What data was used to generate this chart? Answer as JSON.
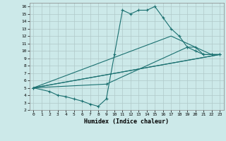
{
  "xlabel": "Humidex (Indice chaleur)",
  "bg_color": "#cce9e9",
  "line_color": "#1a7070",
  "grid_color": "#b0c8c8",
  "xlim": [
    -0.5,
    23.5
  ],
  "ylim": [
    2,
    16.5
  ],
  "xticks": [
    0,
    1,
    2,
    3,
    4,
    5,
    6,
    7,
    8,
    9,
    10,
    11,
    12,
    13,
    14,
    15,
    16,
    17,
    18,
    19,
    20,
    21,
    22,
    23
  ],
  "yticks": [
    2,
    3,
    4,
    5,
    6,
    7,
    8,
    9,
    10,
    11,
    12,
    13,
    14,
    15,
    16
  ],
  "series0_x": [
    0,
    2,
    3,
    4,
    5,
    6,
    7,
    8,
    9,
    10,
    11,
    12,
    13,
    14,
    15,
    16,
    17,
    18,
    19,
    20,
    21,
    22,
    23
  ],
  "series0_y": [
    5,
    4.5,
    4,
    3.8,
    3.5,
    3.2,
    2.8,
    2.5,
    3.5,
    9.5,
    15.5,
    15,
    15.5,
    15.5,
    16,
    14.5,
    13,
    12,
    10.5,
    10,
    9.5,
    9.5,
    9.5
  ],
  "series1_x": [
    0,
    23
  ],
  "series1_y": [
    5,
    9.5
  ],
  "series2_x": [
    0,
    9,
    19,
    20,
    21,
    22,
    23
  ],
  "series2_y": [
    5,
    5.5,
    10.5,
    10.5,
    9.5,
    9.5,
    9.5
  ],
  "series3_x": [
    0,
    23
  ],
  "series3_y": [
    5,
    9.5
  ],
  "series4_x": [
    0,
    17,
    22,
    23
  ],
  "series4_y": [
    5,
    12,
    9.5,
    9.5
  ]
}
